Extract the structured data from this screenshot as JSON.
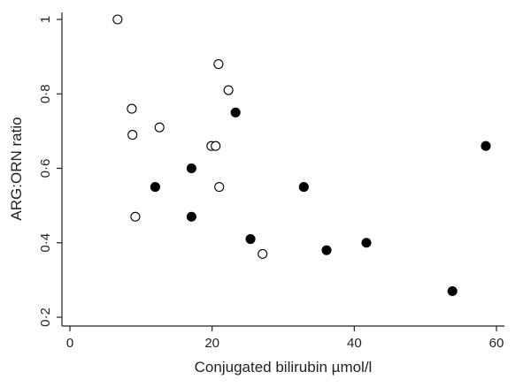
{
  "chart_data": {
    "type": "scatter",
    "title": "",
    "xlabel": "Conjugated bilirubin µmol/l",
    "ylabel": "ARG:ORN ratio",
    "xlim": [
      0,
      61
    ],
    "ylim": [
      0.18,
      1.02
    ],
    "xticks": [
      0,
      20,
      40,
      60
    ],
    "xtick_labels": [
      "0",
      "20",
      "40",
      "60"
    ],
    "yticks": [
      0.2,
      0.4,
      0.6,
      0.8,
      1
    ],
    "ytick_labels": [
      "0·2",
      "0·4",
      "0·6",
      "0·8",
      "1"
    ],
    "grid": false,
    "series": [
      {
        "marker": "open-circle",
        "color": "#000000",
        "points": [
          [
            6.7,
            1.0
          ],
          [
            20.9,
            0.88
          ],
          [
            22.3,
            0.81
          ],
          [
            8.7,
            0.76
          ],
          [
            8.8,
            0.69
          ],
          [
            12.6,
            0.71
          ],
          [
            19.9,
            0.66
          ],
          [
            20.5,
            0.66
          ],
          [
            21.0,
            0.55
          ],
          [
            9.2,
            0.47
          ],
          [
            27.1,
            0.37
          ]
        ]
      },
      {
        "marker": "filled-circle",
        "color": "#000000",
        "points": [
          [
            23.3,
            0.75
          ],
          [
            17.1,
            0.6
          ],
          [
            12.0,
            0.55
          ],
          [
            17.1,
            0.47
          ],
          [
            25.4,
            0.41
          ],
          [
            32.9,
            0.55
          ],
          [
            36.1,
            0.38
          ],
          [
            41.7,
            0.4
          ],
          [
            53.8,
            0.27
          ],
          [
            58.5,
            0.66
          ]
        ]
      }
    ]
  }
}
